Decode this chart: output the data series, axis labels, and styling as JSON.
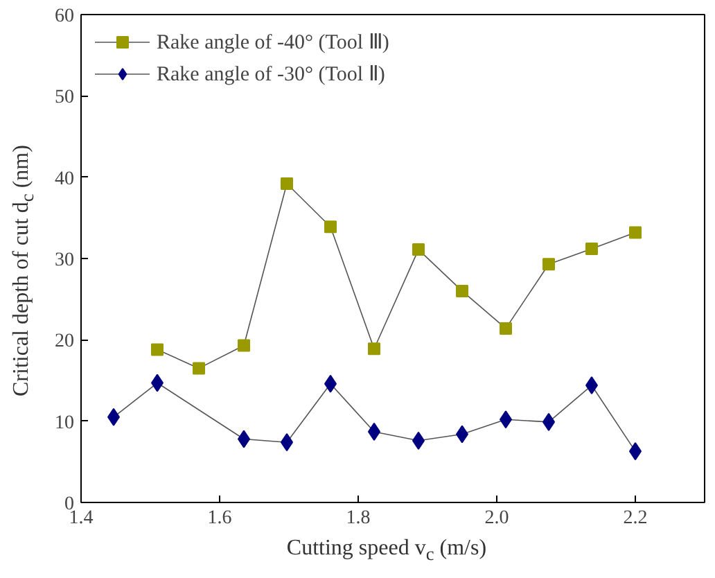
{
  "chart_data": {
    "type": "line",
    "xlabel": "Cutting speed v$_{c}$ (m/s)",
    "ylabel": "Critical depth of cut d$_{c}$ (nm)",
    "xlim": [
      1.4,
      2.3
    ],
    "xticks": [
      1.4,
      1.6,
      1.8,
      {
        "value": 2.0,
        "label": "2.0"
      },
      2.2
    ],
    "ylim": [
      0,
      60
    ],
    "yticks": [
      0,
      10,
      20,
      30,
      40,
      50,
      60
    ],
    "legend": "top left",
    "grid": false,
    "series": [
      {
        "name": "Rake angle of -40° (Tool Ⅲ)",
        "color": "#999900",
        "marker": "square",
        "x": [
          1.51,
          1.57,
          1.635,
          1.697,
          1.76,
          1.823,
          1.887,
          1.95,
          2.013,
          2.075,
          2.137,
          2.2
        ],
        "values": [
          18.8,
          16.5,
          19.3,
          39.2,
          33.9,
          18.9,
          31.1,
          26.0,
          21.4,
          29.3,
          31.2,
          33.2
        ]
      },
      {
        "name": "Rake angle of -30° (Tool Ⅱ)",
        "color": "#000080",
        "marker": "diamond",
        "x": [
          1.447,
          1.51,
          1.635,
          1.697,
          1.76,
          1.823,
          1.887,
          1.95,
          2.013,
          2.075,
          2.137,
          2.2
        ],
        "values": [
          10.5,
          14.7,
          7.8,
          7.4,
          14.6,
          8.7,
          7.6,
          8.4,
          10.2,
          9.9,
          14.4,
          6.3
        ]
      }
    ]
  }
}
